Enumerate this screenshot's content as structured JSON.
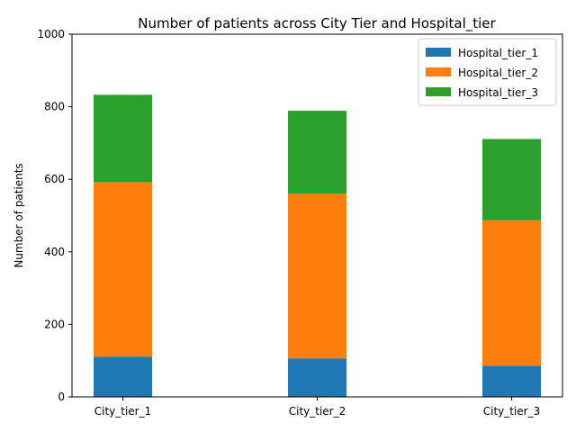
{
  "chart_data": {
    "type": "bar",
    "stacked": true,
    "title": "Number of patients across City Tier and Hospital_tier",
    "xlabel": "",
    "ylabel": "Number of patients",
    "ylim": [
      0,
      1000
    ],
    "yticks": [
      0,
      200,
      400,
      600,
      800,
      1000
    ],
    "categories": [
      "City_tier_1",
      "City_tier_2",
      "City_tier_3"
    ],
    "series": [
      {
        "name": "Hospital_tier_1",
        "color": "#1f77b4",
        "values": [
          111,
          106,
          86
        ]
      },
      {
        "name": "Hospital_tier_2",
        "color": "#ff7f0e",
        "values": [
          481,
          454,
          401
        ]
      },
      {
        "name": "Hospital_tier_3",
        "color": "#2ca02c",
        "values": [
          241,
          229,
          224
        ]
      }
    ],
    "legend": "top-right",
    "grid": false
  }
}
